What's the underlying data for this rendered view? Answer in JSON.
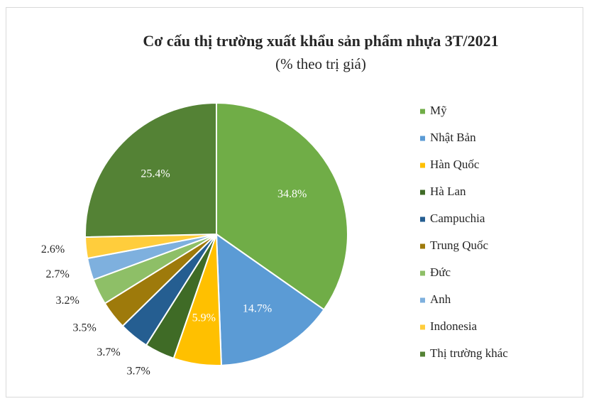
{
  "chart_data": {
    "type": "pie",
    "title": "Cơ cấu thị trường xuất khẩu sản phẩm nhựa  3T/2021",
    "subtitle": "(% theo trị giá)",
    "categories": [
      "Mỹ",
      "Nhật Bản",
      "Hàn Quốc",
      "Hà Lan",
      "Campuchia",
      "Trung Quốc",
      "Đức",
      "Anh",
      "Indonesia",
      "Thị trường khác"
    ],
    "values": [
      34.8,
      14.7,
      5.9,
      3.7,
      3.7,
      3.5,
      3.2,
      2.7,
      2.6,
      25.4
    ],
    "value_labels": [
      "34.8%",
      "14.7%",
      "5.9%",
      "3.7%",
      "3.7%",
      "3.5%",
      "3.2%",
      "2.7%",
      "2.6%",
      "25.4%"
    ],
    "colors": [
      "#70ad47",
      "#5b9bd5",
      "#ffc000",
      "#3f6b26",
      "#255e91",
      "#9e7a0b",
      "#8ebf67",
      "#7eb0de",
      "#ffcd3c",
      "#548235"
    ],
    "legend": "right"
  }
}
